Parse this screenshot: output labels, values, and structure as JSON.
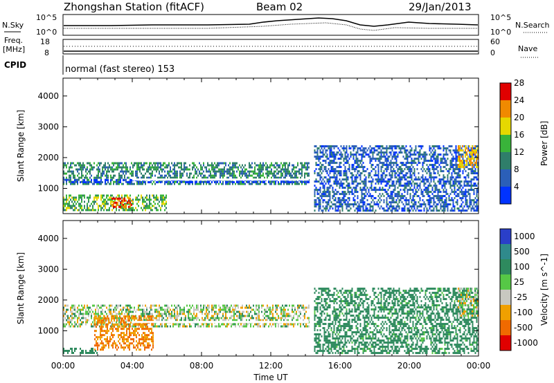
{
  "header": {
    "station": "Zhongshan Station (fitACF)",
    "beam": "Beam 02",
    "date": "29/Jan/2013"
  },
  "strip": {
    "nsky_label": "N.Sky",
    "nsearch_label": "N.Search",
    "noise_ticks_left": [
      "10^5",
      "10^0"
    ],
    "noise_ticks_right": [
      "10^5",
      "10^0"
    ],
    "freq_label_1": "Freq.",
    "freq_label_2": "[MHz]",
    "freq_ticks": [
      "18",
      "8"
    ],
    "nave_label": "Nave",
    "nave_ticks": [
      "60",
      "0"
    ],
    "cpid_label": "CPID",
    "cpid_text": "normal (fast stereo) 153"
  },
  "chart_data": [
    {
      "type": "heatmap",
      "panel": "power",
      "ylabel": "Slant Range [km]",
      "ylim": [
        180,
        4580
      ],
      "yticks": [
        "1000",
        "2000",
        "3000",
        "4000"
      ],
      "xlim": [
        "00:00",
        "24:00"
      ],
      "colorbar": {
        "label": "Power [dB]",
        "ticks": [
          "4",
          "8",
          "12",
          "16",
          "20",
          "24",
          "28"
        ],
        "colors": [
          "#0033ff",
          "#2b5fb8",
          "#2f7e6a",
          "#39b33a",
          "#e6d800",
          "#f08a00",
          "#e00000"
        ]
      },
      "echo_bands": [
        {
          "from_hour": 0.0,
          "to_hour": 14.2,
          "range_km": [
            1150,
            1850
          ],
          "level_db": 12
        },
        {
          "from_hour": 0.0,
          "to_hour": 14.2,
          "range_km": [
            1200,
            1300
          ],
          "level_db": 4
        },
        {
          "from_hour": 0.0,
          "to_hour": 6.0,
          "range_km": [
            300,
            800
          ],
          "level_db": 16
        },
        {
          "from_hour": 2.8,
          "to_hour": 4.0,
          "range_km": [
            400,
            700
          ],
          "level_db": 26
        },
        {
          "from_hour": 14.5,
          "to_hour": 24.0,
          "range_km": [
            300,
            2400
          ],
          "level_db": 8
        },
        {
          "from_hour": 22.8,
          "to_hour": 24.0,
          "range_km": [
            1700,
            2400
          ],
          "level_db": 22
        }
      ]
    },
    {
      "type": "heatmap",
      "panel": "velocity",
      "ylabel": "Slant Range [km]",
      "ylim": [
        180,
        4580
      ],
      "yticks": [
        "1000",
        "2000",
        "3000",
        "4000"
      ],
      "xlim": [
        "00:00",
        "24:00"
      ],
      "xticks": [
        "00:00",
        "04:00",
        "08:00",
        "12:00",
        "16:00",
        "20:00",
        "00:00"
      ],
      "xlabel": "Time UT",
      "colorbar": {
        "label": "Velocity [m s^-1]",
        "ticks": [
          "1000",
          "500",
          "100",
          "25",
          "-25",
          "-100",
          "-500",
          "-1000"
        ],
        "colors": [
          "#2a3fc9",
          "#2f8a8c",
          "#2e8a5e",
          "#56c846",
          "#c8c8c0",
          "#f0a000",
          "#f06a00",
          "#e00000"
        ]
      },
      "echo_bands": [
        {
          "from_hour": 0.0,
          "to_hour": 14.2,
          "range_km": [
            1150,
            1850
          ],
          "velocity_ms": 0
        },
        {
          "from_hour": 1.8,
          "to_hour": 5.2,
          "range_km": [
            400,
            1500
          ],
          "velocity_ms": -300
        },
        {
          "from_hour": 0.0,
          "to_hour": 2.0,
          "range_km": [
            250,
            450
          ],
          "velocity_ms": 200
        },
        {
          "from_hour": 14.5,
          "to_hour": 24.0,
          "range_km": [
            300,
            2400
          ],
          "velocity_ms": 150
        },
        {
          "from_hour": 22.8,
          "to_hour": 24.0,
          "range_km": [
            1500,
            2400
          ],
          "velocity_ms": 0
        }
      ]
    }
  ]
}
